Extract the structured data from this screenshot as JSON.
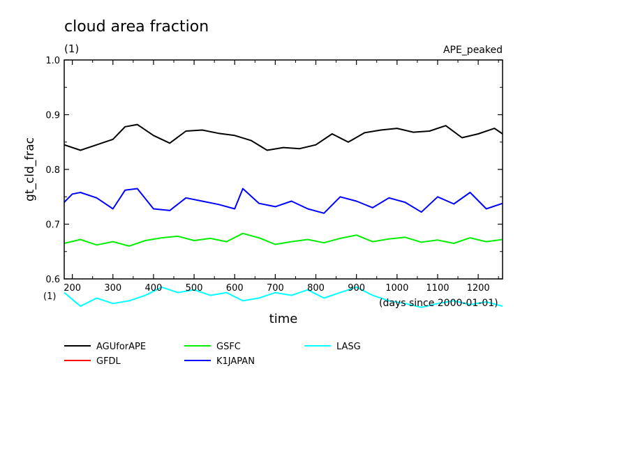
{
  "title": "cloud area fraction",
  "subtitle": "(1)",
  "tag": "APE_peaked",
  "chart_data": {
    "type": "line",
    "title": "cloud area fraction",
    "xlabel": "time",
    "xunit": "(days since 2000-01-01)",
    "ylabel": "gt_cld_frac",
    "yunit": "(1)",
    "xlim": [
      180,
      1260
    ],
    "ylim": [
      0.6,
      1.0
    ],
    "xticks": [
      200,
      300,
      400,
      500,
      600,
      700,
      800,
      900,
      1000,
      1100,
      1200
    ],
    "yticks": [
      "0.6",
      "0.7",
      "0.8",
      "0.9",
      "1.0"
    ],
    "grid": false,
    "legend_position": "bottom",
    "series": [
      {
        "name": "AGUforAPE",
        "color": "#000000",
        "x": [
          180,
          220,
          260,
          300,
          330,
          360,
          400,
          440,
          480,
          520,
          560,
          600,
          640,
          680,
          720,
          760,
          800,
          840,
          880,
          920,
          960,
          1000,
          1040,
          1080,
          1120,
          1160,
          1200,
          1240,
          1260
        ],
        "y": [
          0.845,
          0.835,
          0.845,
          0.855,
          0.878,
          0.882,
          0.862,
          0.848,
          0.87,
          0.872,
          0.866,
          0.862,
          0.853,
          0.835,
          0.84,
          0.838,
          0.845,
          0.865,
          0.85,
          0.867,
          0.872,
          0.875,
          0.868,
          0.87,
          0.88,
          0.858,
          0.865,
          0.875,
          0.865
        ]
      },
      {
        "name": "GFDL",
        "color": "#ff0000",
        "x": [],
        "y": []
      },
      {
        "name": "GSFC",
        "color": "#00ee00",
        "x": [
          180,
          220,
          260,
          300,
          340,
          380,
          420,
          460,
          500,
          540,
          580,
          620,
          660,
          700,
          740,
          780,
          820,
          860,
          900,
          940,
          980,
          1020,
          1060,
          1100,
          1140,
          1180,
          1220,
          1260
        ],
        "y": [
          0.665,
          0.672,
          0.662,
          0.668,
          0.66,
          0.67,
          0.675,
          0.678,
          0.67,
          0.674,
          0.668,
          0.683,
          0.675,
          0.663,
          0.668,
          0.672,
          0.666,
          0.674,
          0.68,
          0.668,
          0.673,
          0.676,
          0.667,
          0.671,
          0.665,
          0.675,
          0.668,
          0.672
        ]
      },
      {
        "name": "K1JAPAN",
        "color": "#0000ff",
        "x": [
          180,
          200,
          220,
          260,
          300,
          330,
          360,
          400,
          440,
          480,
          520,
          560,
          600,
          620,
          660,
          700,
          740,
          780,
          820,
          860,
          900,
          940,
          980,
          1020,
          1060,
          1100,
          1140,
          1180,
          1220,
          1260
        ],
        "y": [
          0.74,
          0.755,
          0.758,
          0.748,
          0.728,
          0.762,
          0.765,
          0.728,
          0.725,
          0.748,
          0.742,
          0.736,
          0.728,
          0.765,
          0.738,
          0.732,
          0.742,
          0.728,
          0.72,
          0.75,
          0.742,
          0.73,
          0.748,
          0.74,
          0.722,
          0.75,
          0.737,
          0.758,
          0.728,
          0.738
        ]
      },
      {
        "name": "LASG",
        "color": "#00ffff",
        "x": [
          180,
          220,
          260,
          300,
          340,
          380,
          420,
          460,
          500,
          540,
          580,
          620,
          660,
          700,
          740,
          780,
          820,
          860,
          900,
          940,
          980,
          1020,
          1060,
          1100,
          1140,
          1180,
          1220,
          1260
        ],
        "y": [
          0.575,
          0.55,
          0.565,
          0.555,
          0.56,
          0.57,
          0.585,
          0.575,
          0.58,
          0.57,
          0.575,
          0.56,
          0.565,
          0.575,
          0.57,
          0.58,
          0.565,
          0.575,
          0.585,
          0.57,
          0.56,
          0.555,
          0.548,
          0.555,
          0.56,
          0.553,
          0.558,
          0.55
        ]
      }
    ]
  }
}
